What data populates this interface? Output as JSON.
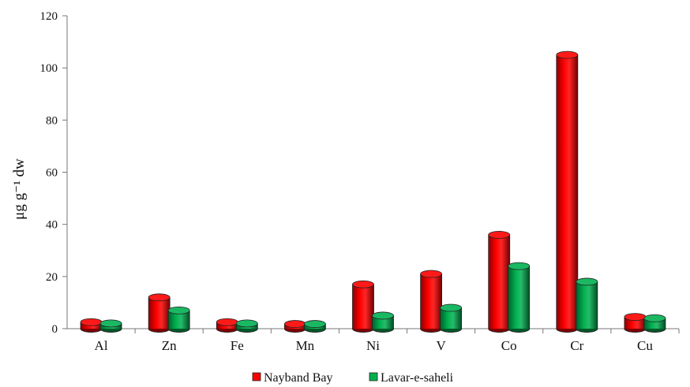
{
  "chart_data": {
    "type": "bar",
    "categories": [
      "Al",
      "Zn",
      "Fe",
      "Mn",
      "Ni",
      "V",
      "Co",
      "Cr",
      "Cu"
    ],
    "series": [
      {
        "name": "Nayband Bay",
        "color": "#ff0000",
        "values": [
          2.5,
          12,
          2.5,
          1.8,
          17,
          21,
          36,
          105,
          4.5
        ]
      },
      {
        "name": "Lavar-e-saheli",
        "color": "#00b050",
        "values": [
          2,
          7,
          2,
          1.8,
          5,
          8,
          24,
          18,
          4
        ]
      }
    ],
    "ylabel": "μg g⁻¹ dw",
    "ylim": [
      0,
      120
    ],
    "yticks": [
      0,
      20,
      40,
      60,
      80,
      100,
      120
    ],
    "legend": "bottom",
    "grid": false,
    "style": "3d-cylinder"
  }
}
